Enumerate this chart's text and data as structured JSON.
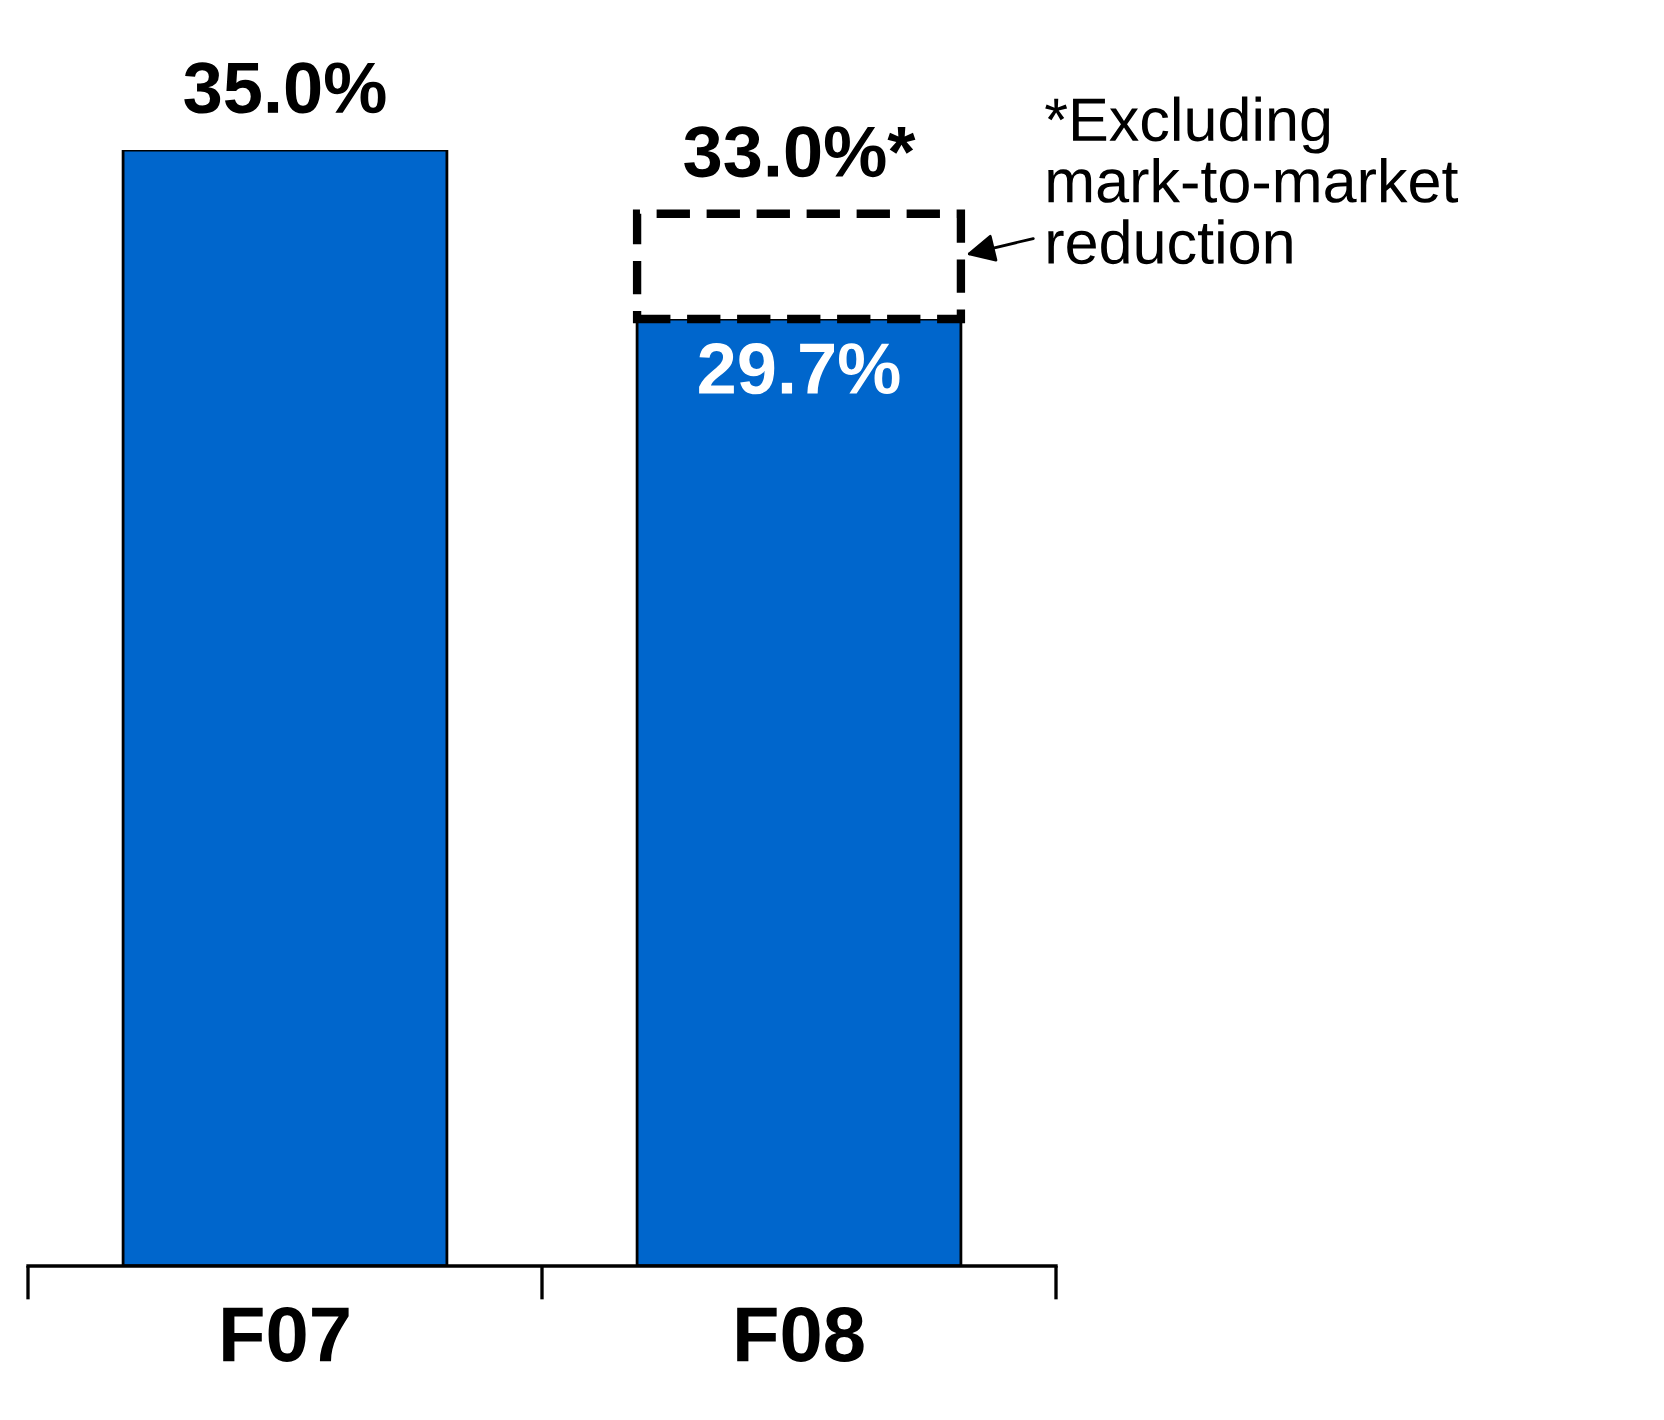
{
  "chart_data": {
    "type": "bar",
    "categories": [
      "F07",
      "F08"
    ],
    "series": [
      {
        "color": "#0066cc",
        "values": [
          35.0,
          29.7
        ],
        "value_labels": [
          "35.0%",
          "29.7%"
        ]
      },
      {
        "color": "#ffffff",
        "values": [
          null,
          3.3
        ],
        "line_style": "dashed"
      }
    ],
    "totals": [
      null,
      "33.0%*"
    ],
    "stacked": true,
    "annotations": [
      "*Excluding\nmark-to-market\nreduction"
    ],
    "grid": false,
    "legend": false,
    "tick_labels": "x"
  }
}
